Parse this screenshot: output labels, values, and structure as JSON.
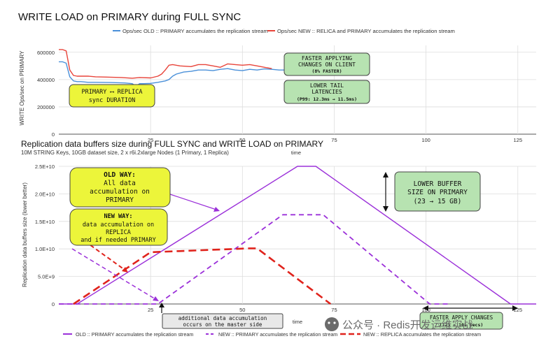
{
  "top_chart": {
    "title": "WRITE LOAD on PRIMARY during FULL SYNC",
    "ylabel": "WRITE Ops/sec on PRIMARY",
    "xlabel": "time",
    "legend": [
      {
        "name": "Ops/sec OLD :: PRIMARY accumulates the replication stream",
        "color": "#4a90d9"
      },
      {
        "name": "Ops/sec NEW :: RELICA and PRIMARY accumulates the replication stream",
        "color": "#e8443a"
      }
    ],
    "yticks": [
      "0",
      "200000",
      "400000",
      "600000"
    ],
    "xticks": [
      "25",
      "50",
      "75",
      "100",
      "125"
    ],
    "annotations": {
      "sync": [
        "PRIMARY ⟷ REPLICA",
        "sync DURATION"
      ],
      "faster": [
        "FASTER APPLYING",
        "CHANGES ON CLIENT",
        "(8% FASTER)"
      ],
      "tail": [
        "LOWER TAIL",
        "LATENCIES",
        "(P99: 12.3ms → 11.5ms)"
      ]
    }
  },
  "bottom_chart": {
    "title": "Replication data buffers size during FULL SYNC and WRITE LOAD on PRIMARY",
    "subtitle": "10M STRING Keys, 10GB dataset size, 2 x r6i.2xlarge Nodes (1 Primary, 1 Replica)",
    "ylabel": "Replication data buffers size (lower better)",
    "xlabel": "time",
    "yticks": [
      "0",
      "5.0E+9",
      "1.0E+10",
      "1.5E+10",
      "2.0E+10",
      "2.5E+10"
    ],
    "xticks": [
      "25",
      "50",
      "75",
      "100",
      "125"
    ],
    "legend": [
      {
        "name": "OLD :: PRIMARY accumulates the replication stream",
        "color": "#9b30d9"
      },
      {
        "name": "NEW :: PRIMARY accumulates the replication stream",
        "color": "#9b30d9"
      },
      {
        "name": "NEW :: REPLICA accumulates the replication stream",
        "color": "#e0231c"
      }
    ],
    "annotations": {
      "old_way": [
        "OLD WAY:",
        "All data",
        "accumulation on",
        "PRIMARY"
      ],
      "new_way": [
        "NEW WAY:",
        "data accumulation on",
        "REPLICA",
        "and if needed PRIMARY"
      ],
      "lower_buffer": [
        "LOWER BUFFER",
        "SIZE ON PRIMARY",
        "(23 → 15 GB)"
      ],
      "additional": [
        "additional data accumulation",
        "occurs on the master side"
      ],
      "faster_apply": [
        "FASTER APPLY CHANGES",
        "(123 → 101 secs)"
      ]
    }
  },
  "watermark": "公众号 · Redis开发运维实战",
  "chart_data": [
    {
      "type": "line",
      "title": "WRITE LOAD on PRIMARY during FULL SYNC",
      "xlabel": "time",
      "ylabel": "WRITE Ops/sec on PRIMARY",
      "xlim": [
        0,
        130
      ],
      "ylim": [
        0,
        650000
      ],
      "grid": true,
      "legend_position": "top",
      "series": [
        {
          "name": "Ops/sec OLD :: PRIMARY accumulates the replication stream",
          "color": "#4a90d9",
          "x": [
            0,
            1,
            2,
            3,
            4,
            5,
            6,
            8,
            10,
            14,
            18,
            20,
            21,
            22,
            23,
            25,
            27,
            29,
            30,
            31,
            32,
            34,
            36,
            38,
            40,
            42,
            44,
            46,
            48,
            50,
            52,
            54,
            56,
            58,
            60,
            62
          ],
          "y": [
            530000,
            530000,
            520000,
            420000,
            390000,
            385000,
            385000,
            380000,
            380000,
            378000,
            375000,
            370000,
            350000,
            370000,
            370000,
            372000,
            380000,
            390000,
            400000,
            425000,
            440000,
            455000,
            460000,
            470000,
            470000,
            465000,
            475000,
            480000,
            470000,
            465000,
            475000,
            470000,
            478000,
            475000,
            470000,
            470000
          ]
        },
        {
          "name": "Ops/sec NEW :: RELICA and PRIMARY accumulates the replication stream",
          "color": "#e8443a",
          "x": [
            0,
            1,
            2,
            3,
            4,
            5,
            8,
            10,
            13,
            17,
            20,
            22,
            25,
            27,
            28,
            29,
            30,
            31,
            33,
            36,
            38,
            40,
            42,
            44,
            46,
            48,
            50,
            52,
            54,
            56,
            58
          ],
          "y": [
            620000,
            620000,
            610000,
            470000,
            430000,
            425000,
            425000,
            420000,
            418000,
            415000,
            410000,
            415000,
            412000,
            425000,
            440000,
            470000,
            505000,
            510000,
            500000,
            495000,
            510000,
            510000,
            500000,
            490000,
            515000,
            510000,
            505000,
            510000,
            500000,
            490000,
            480000
          ]
        }
      ]
    },
    {
      "type": "line",
      "title": "Replication data buffers size during FULL SYNC and WRITE LOAD on PRIMARY",
      "xlabel": "time",
      "ylabel": "Replication data buffers size (lower better)",
      "xlim": [
        0,
        130
      ],
      "ylim": [
        0,
        25000000000
      ],
      "grid": true,
      "legend_position": "bottom",
      "series": [
        {
          "name": "OLD :: PRIMARY accumulates the replication stream",
          "color": "#9b30d9",
          "dash": "solid",
          "x": [
            0,
            5,
            65,
            70,
            123,
            130
          ],
          "y": [
            0,
            0,
            25000000000,
            25000000000,
            0,
            0
          ]
        },
        {
          "name": "NEW :: PRIMARY accumulates the replication stream",
          "color": "#9b30d9",
          "dash": "dash",
          "x": [
            0,
            27,
            61,
            72,
            101,
            106
          ],
          "y": [
            0,
            0,
            16200000000,
            16200000000,
            0,
            0
          ]
        },
        {
          "name": "NEW :: REPLICA accumulates the replication stream",
          "color": "#e0231c",
          "dash": "dash",
          "x": [
            4,
            25,
            52,
            54,
            74
          ],
          "y": [
            0,
            9400000000,
            10100000000,
            10100000000,
            0
          ]
        }
      ]
    }
  ]
}
